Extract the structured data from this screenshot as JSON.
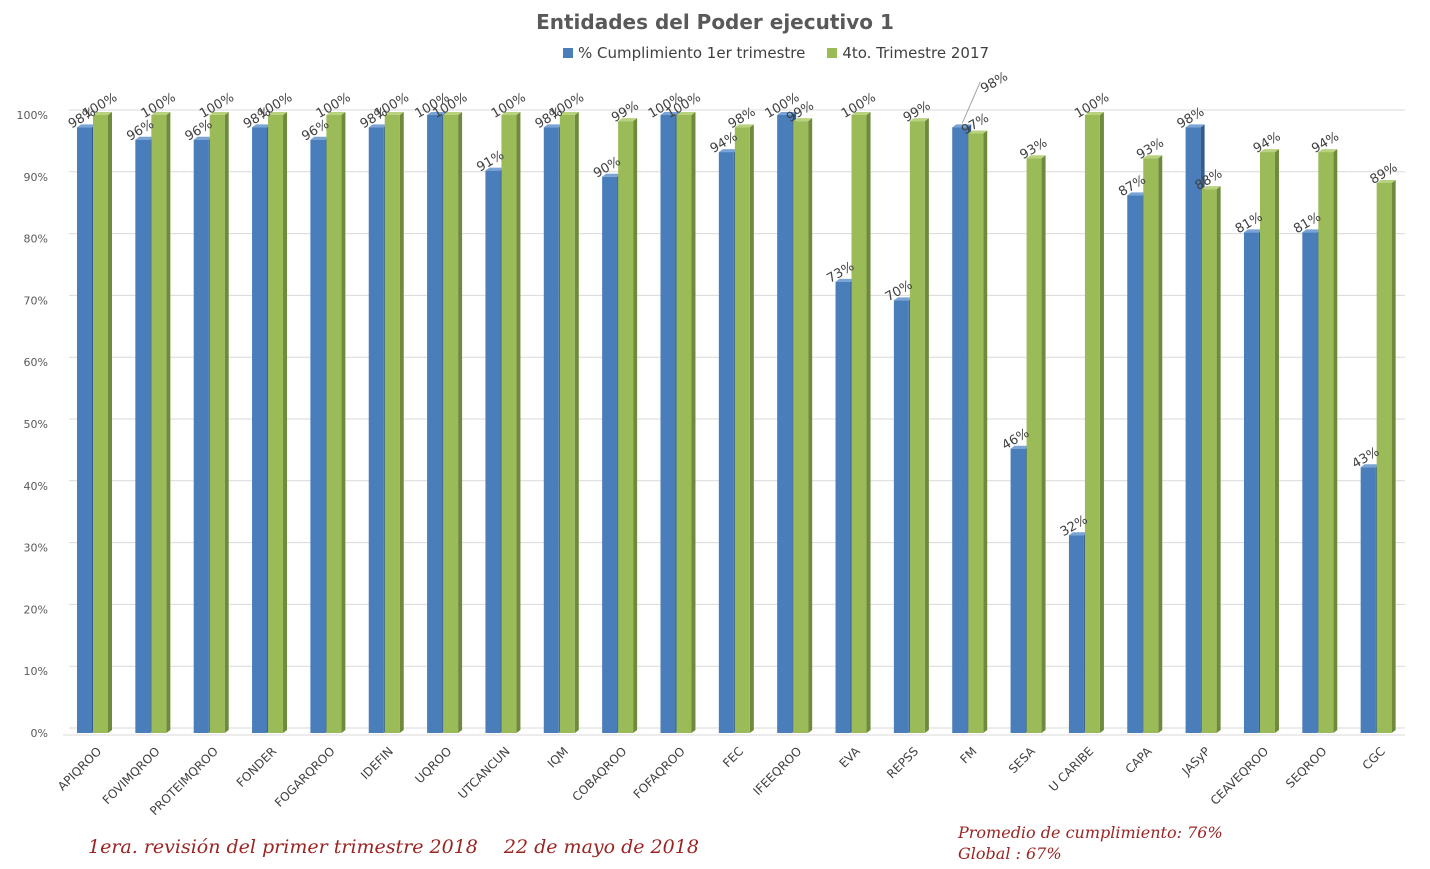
{
  "chart_data": {
    "type": "bar",
    "title": "Entidades del Poder ejecutivo 1",
    "categories": [
      "APIQROO",
      "FOVIMQROO",
      "PROTEIMQROO",
      "FONDER",
      "FOGARQROO",
      "IDEFIN",
      "UQROO",
      "UTCANCUN",
      "IQM",
      "COBAQROO",
      "FOFAQROO",
      "FEC",
      "IFEEQROO",
      "EVA",
      "REPSS",
      "FM",
      "SESA",
      "U CARIBE",
      "CAPA",
      "JASyP",
      "CEAVEQROO",
      "SEQROO",
      "CGC"
    ],
    "series": [
      {
        "name": "% Cumplimiento 1er trimestre",
        "color": "#4a7ebb",
        "values": [
          98,
          96,
          96,
          98,
          96,
          98,
          100,
          91,
          98,
          90,
          100,
          94,
          100,
          73,
          70,
          98,
          46,
          32,
          87,
          98,
          81,
          81,
          43
        ],
        "labels": [
          "98%",
          "96%",
          "96%",
          "98%",
          "96%",
          "98%",
          "100%",
          "91%",
          "98%",
          "90%",
          "100%",
          "94%",
          "100%",
          "73%",
          "70%",
          "",
          "46%",
          "32%",
          "87%",
          "98%",
          "81%",
          "81%",
          "43%"
        ]
      },
      {
        "name": "4to. Trimestre 2017",
        "color": "#9bbb59",
        "values": [
          100,
          100,
          100,
          100,
          100,
          100,
          100,
          100,
          100,
          99,
          100,
          98,
          99,
          100,
          99,
          97,
          93,
          100,
          93,
          88,
          94,
          94,
          89
        ],
        "labels": [
          "100%",
          "100%",
          "100%",
          "100%",
          "100%",
          "100%",
          "100%",
          "100%",
          "100%",
          "99%",
          "100%",
          "98%",
          "99%",
          "100%",
          "99%",
          "97%",
          "93%",
          "100%",
          "93%",
          "88%",
          "94%",
          "94%",
          "89%"
        ]
      }
    ],
    "extra_labels": [
      {
        "text": "98%"
      }
    ],
    "ylim": [
      0,
      100
    ],
    "yticks": [
      "0%",
      "10%",
      "20%",
      "30%",
      "40%",
      "50%",
      "60%",
      "70%",
      "80%",
      "90%",
      "100%"
    ],
    "grid": true,
    "legend": "top"
  },
  "footer": {
    "revision": "1era. revisión del primer trimestre 2018",
    "date": "22 de mayo de 2018",
    "promedio": "Promedio de cumplimiento: 76%",
    "global": "Global : 67%"
  }
}
